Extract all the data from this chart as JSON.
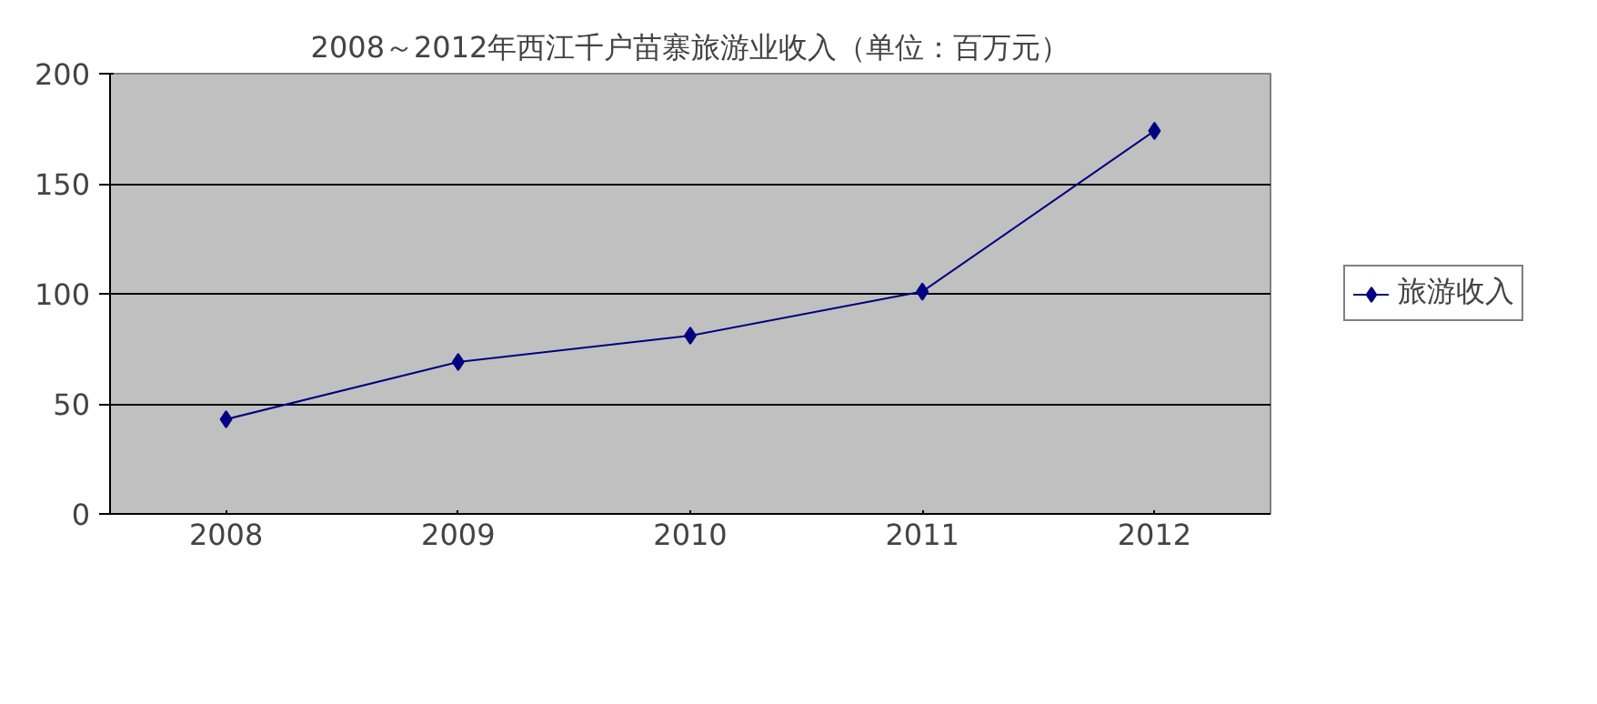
{
  "chart_data": {
    "type": "line",
    "title": "2008～2012年西江千户苗寨旅游业收入（单位：百万元）",
    "categories": [
      "2008",
      "2009",
      "2010",
      "2011",
      "2012"
    ],
    "series": [
      {
        "name": "旅游收入",
        "color": "#000080",
        "values": [
          43,
          69,
          81,
          101,
          174
        ]
      }
    ],
    "ylim": [
      0,
      200
    ],
    "yticks": [
      0,
      50,
      100,
      150,
      200
    ],
    "grid": "y",
    "legend": "right",
    "marker": "diamond",
    "line_style": "solid"
  }
}
